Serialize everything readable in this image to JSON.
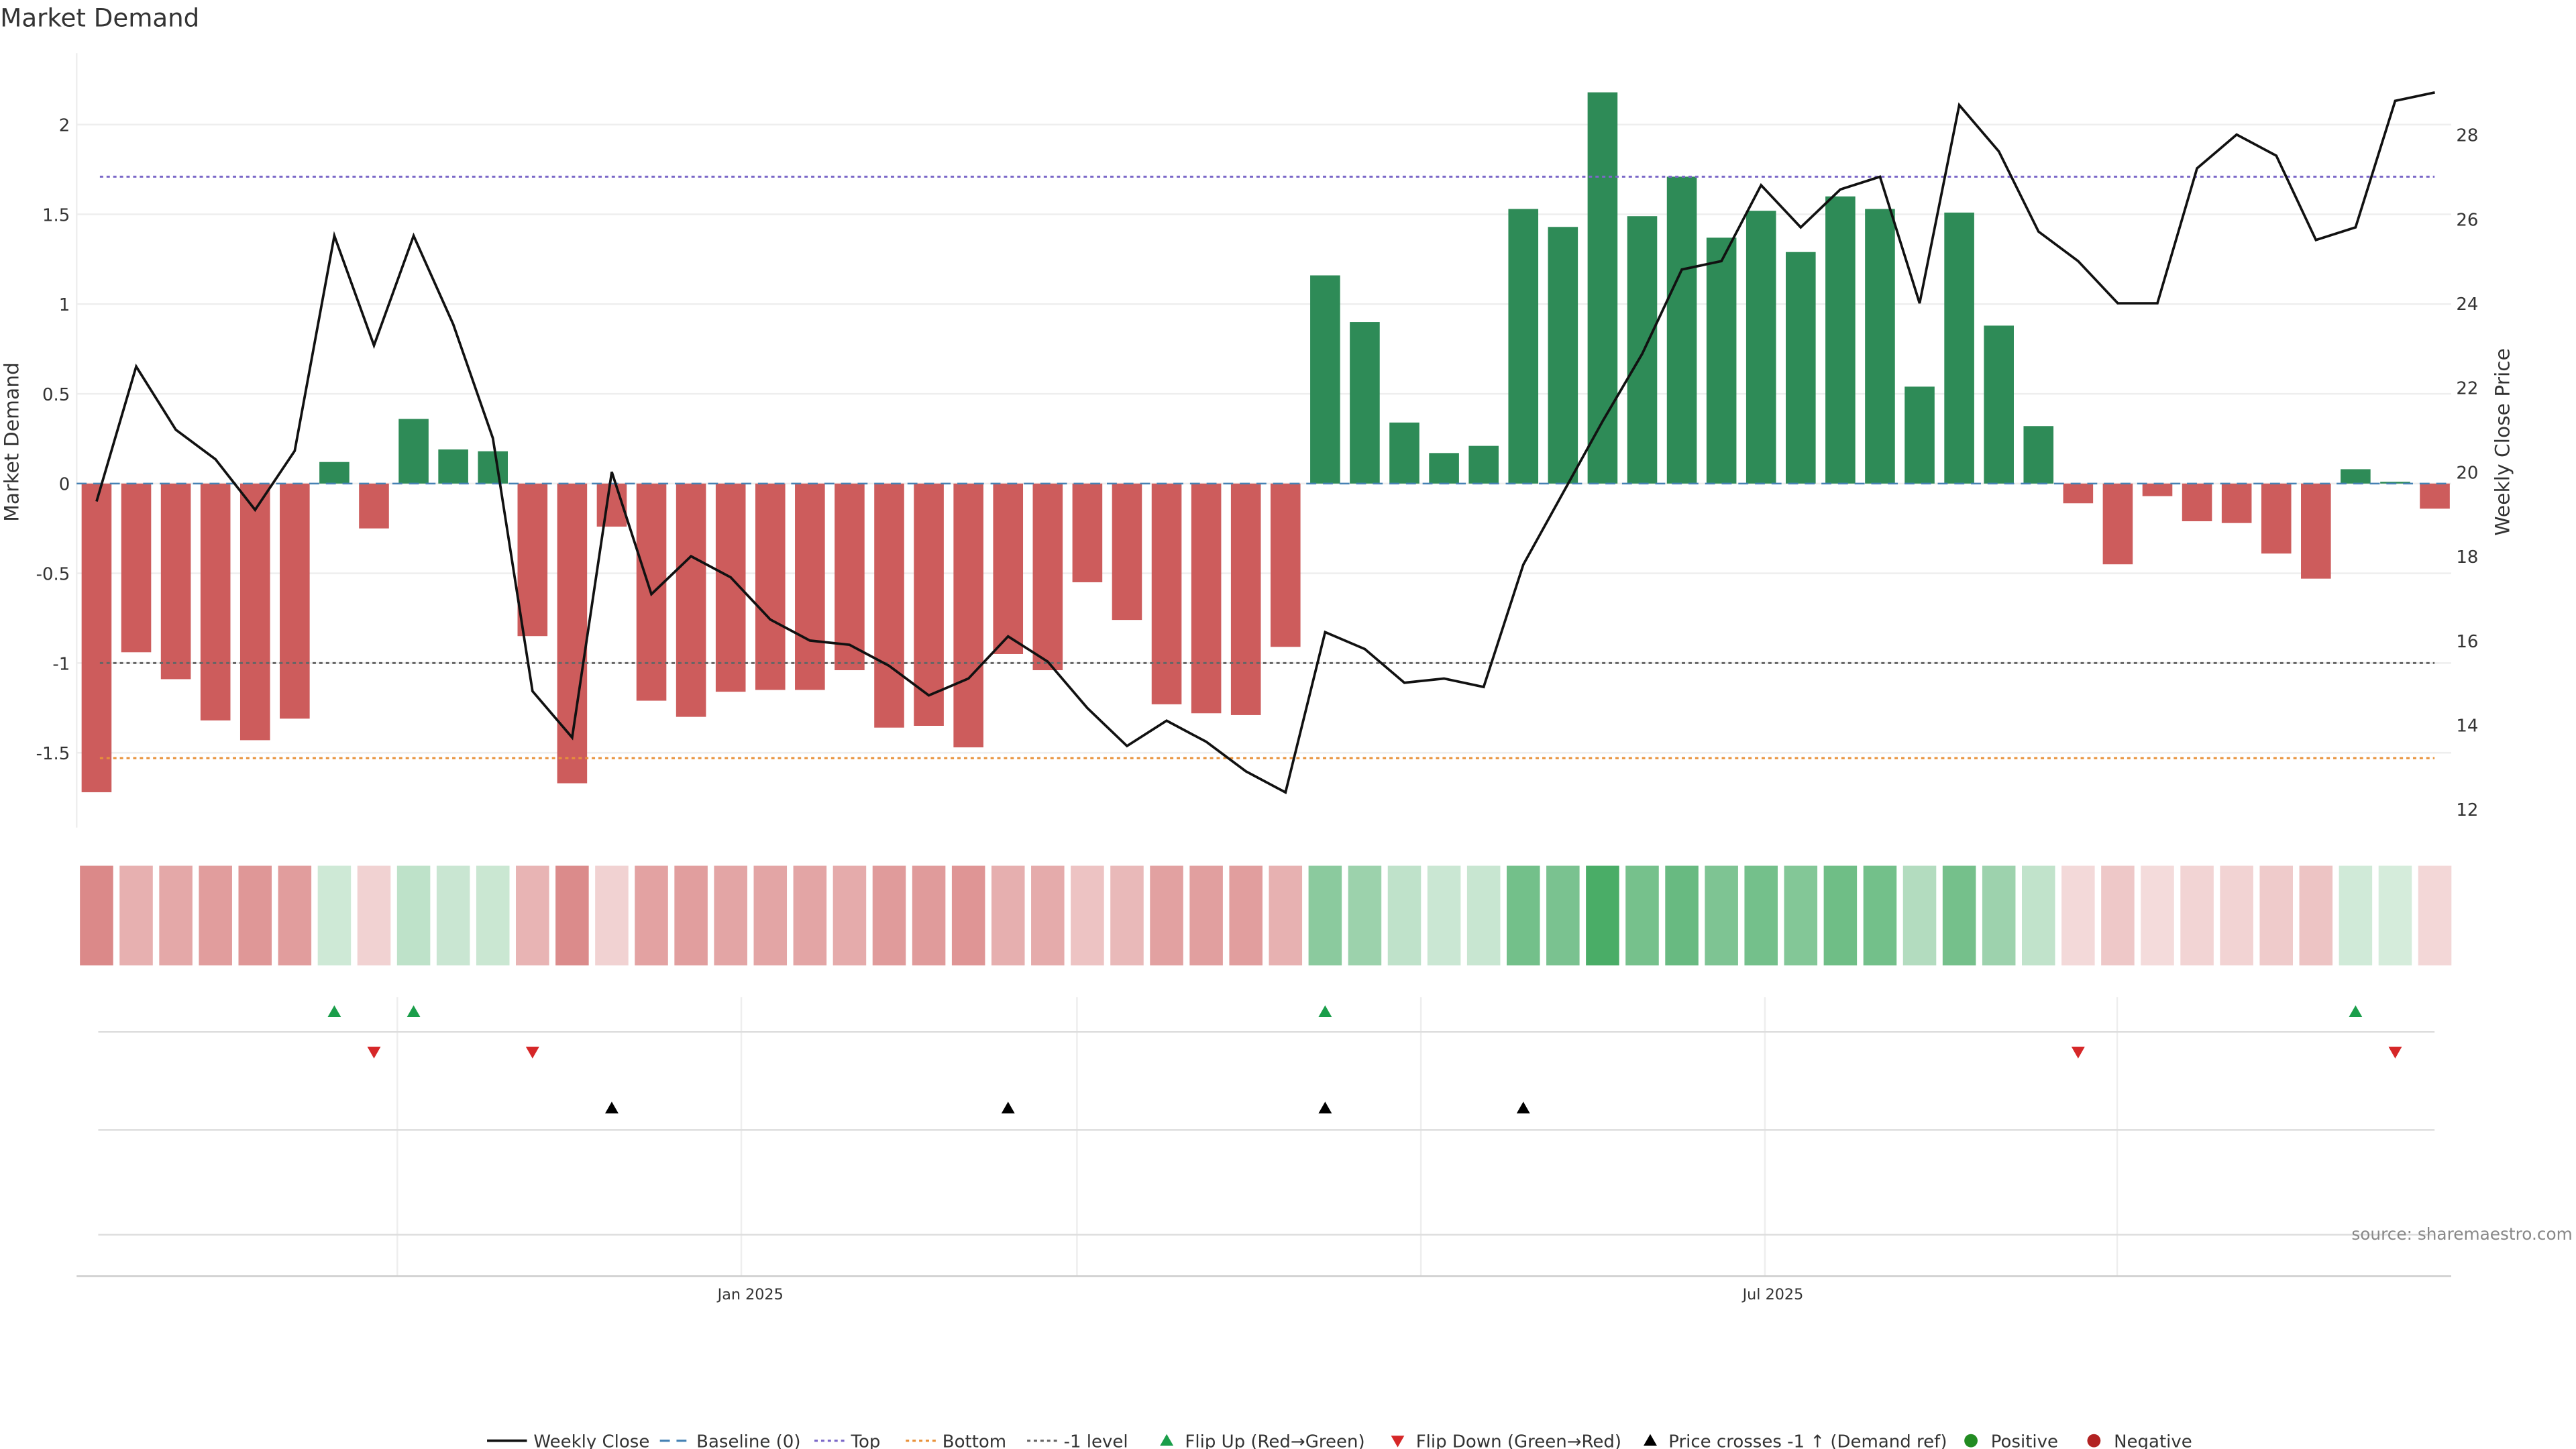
{
  "chart_data": {
    "type": "bar",
    "title": "Market Demand",
    "ylabel": "Market Demand",
    "y2label": "Weekly Close Price",
    "ylim": [
      -1.95,
      2.4
    ],
    "y2lim": [
      11.6,
      29.8
    ],
    "yticks": [
      "-1.5",
      "-1",
      "-0.5",
      "0",
      "0.5",
      "1",
      "1.5",
      "2"
    ],
    "yticks_values": [
      -1.5,
      -1,
      -0.5,
      0,
      0.5,
      1,
      1.5,
      2
    ],
    "y2ticks": [
      "12",
      "14",
      "16",
      "18",
      "20",
      "22",
      "24",
      "26",
      "28"
    ],
    "y2ticks_values": [
      12,
      14,
      16,
      18,
      20,
      22,
      24,
      26,
      28
    ],
    "xticks": [
      "Jan 2025",
      "Jul 2025"
    ],
    "xticks_index": [
      16.5,
      42.3
    ],
    "reference_lines": {
      "baseline": 0,
      "top": 1.71,
      "bottom": -1.53,
      "minus_one": -1
    },
    "demand": [
      -1.72,
      -0.94,
      -1.09,
      -1.32,
      -1.43,
      -1.31,
      0.12,
      -0.25,
      0.36,
      0.19,
      0.18,
      -0.85,
      -1.67,
      -0.24,
      -1.21,
      -1.3,
      -1.16,
      -1.15,
      -1.15,
      -1.04,
      -1.36,
      -1.35,
      -1.47,
      -0.95,
      -1.04,
      -0.55,
      -0.76,
      -1.23,
      -1.28,
      -1.29,
      -0.91,
      1.16,
      0.9,
      0.34,
      0.17,
      0.21,
      1.53,
      1.43,
      2.18,
      1.49,
      1.71,
      1.37,
      1.52,
      1.29,
      1.6,
      1.53,
      0.54,
      1.51,
      0.88,
      0.32,
      -0.11,
      -0.45,
      -0.07,
      -0.21,
      -0.22,
      -0.39,
      -0.53,
      0.08,
      0.01,
      -0.14
    ],
    "weekly_close": [
      19.3,
      22.5,
      21.0,
      20.3,
      19.1,
      20.5,
      25.6,
      23.0,
      25.6,
      23.5,
      20.8,
      14.8,
      13.7,
      20.0,
      17.1,
      18.0,
      17.5,
      16.5,
      16.0,
      15.9,
      15.4,
      14.7,
      15.1,
      16.1,
      15.5,
      14.4,
      13.5,
      14.1,
      13.6,
      12.9,
      12.4,
      16.2,
      15.8,
      15.0,
      15.1,
      14.9,
      17.8,
      19.5,
      21.2,
      22.8,
      24.8,
      25.0,
      26.8,
      25.8,
      26.7,
      27.0,
      24.0,
      28.7,
      27.6,
      25.7,
      25.0,
      24.0,
      24.0,
      27.2,
      28.0,
      27.5,
      25.5,
      25.8,
      28.8,
      29.0
    ],
    "flip_up_index": [
      6,
      8,
      31,
      57
    ],
    "flip_down_index": [
      7,
      11,
      50,
      58
    ],
    "price_cross_index": [
      13,
      23,
      31,
      36
    ],
    "colors": {
      "positive": "#2e8b57",
      "negative": "#cd5c5c",
      "line": "#111111",
      "baseline": "#4682b4",
      "top": "#7b68c8",
      "bottom": "#e8913a",
      "minus_one": "#666666",
      "flip_up": "#1a9e4a",
      "flip_down": "#d62728",
      "cross": "#000000",
      "pos_dot": "#228b22",
      "neg_dot": "#b22222"
    },
    "legend": [
      "Weekly Close",
      "Baseline (0)",
      "Top",
      "Bottom",
      "-1 level",
      "Flip Up (Red→Green)",
      "Flip Down (Green→Red)",
      "Price crosses -1 ↑ (Demand ref)",
      "Positive",
      "Negative"
    ],
    "legend_position": "bottom"
  },
  "source": "source: sharemaestro.com"
}
